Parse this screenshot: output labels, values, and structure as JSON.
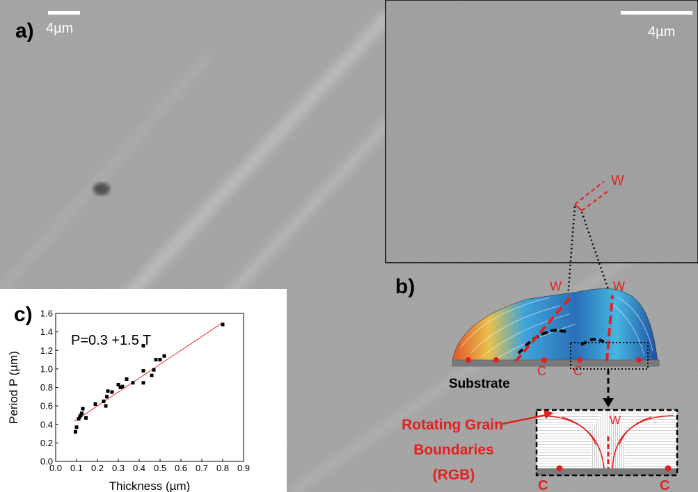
{
  "panel_a": {
    "label": "a)",
    "scalebar": "4µm"
  },
  "inset": {
    "scalebar": "4µm",
    "marker": "W"
  },
  "panel_b": {
    "label": "b)",
    "wall_labels": [
      "W",
      "W"
    ],
    "contact_labels": [
      "C",
      "C"
    ],
    "substrate_label": "Substrate",
    "rgb_label_lines": [
      "Rotating Grain",
      "Boundaries",
      "(RGB)"
    ],
    "zoom_wall": "W",
    "zoom_contacts": [
      "C",
      "C"
    ]
  },
  "panel_c": {
    "label": "c)",
    "equation": "P=0.3 +1.5 T"
  },
  "colors": {
    "annotation_red": "#e32020",
    "fit_line": "#e03030",
    "image_gray": "#9d9d9d"
  },
  "chart_data": {
    "type": "scatter",
    "title": "",
    "xlabel": "Thickness (µm)",
    "ylabel": "Period P (µm)",
    "xlim": [
      0.0,
      0.9
    ],
    "ylim": [
      0.0,
      1.6
    ],
    "xticks": [
      "0.0",
      "0.1",
      "0.2",
      "0.3",
      "0.4",
      "0.5",
      "0.6",
      "0.7",
      "0.8",
      "0.9"
    ],
    "yticks": [
      "0.0",
      "0.2",
      "0.4",
      "0.6",
      "0.8",
      "1.0",
      "1.2",
      "1.4",
      "1.6"
    ],
    "grid": false,
    "points": [
      {
        "x": 0.095,
        "y": 0.32
      },
      {
        "x": 0.1,
        "y": 0.37
      },
      {
        "x": 0.11,
        "y": 0.46
      },
      {
        "x": 0.115,
        "y": 0.48
      },
      {
        "x": 0.12,
        "y": 0.5
      },
      {
        "x": 0.125,
        "y": 0.52
      },
      {
        "x": 0.13,
        "y": 0.57
      },
      {
        "x": 0.145,
        "y": 0.47
      },
      {
        "x": 0.19,
        "y": 0.62
      },
      {
        "x": 0.23,
        "y": 0.65
      },
      {
        "x": 0.24,
        "y": 0.6
      },
      {
        "x": 0.245,
        "y": 0.7
      },
      {
        "x": 0.25,
        "y": 0.76
      },
      {
        "x": 0.27,
        "y": 0.75
      },
      {
        "x": 0.3,
        "y": 0.83
      },
      {
        "x": 0.31,
        "y": 0.8
      },
      {
        "x": 0.32,
        "y": 0.81
      },
      {
        "x": 0.34,
        "y": 0.89
      },
      {
        "x": 0.37,
        "y": 0.85
      },
      {
        "x": 0.42,
        "y": 0.85
      },
      {
        "x": 0.42,
        "y": 0.98
      },
      {
        "x": 0.42,
        "y": 1.25
      },
      {
        "x": 0.46,
        "y": 0.93
      },
      {
        "x": 0.47,
        "y": 0.99
      },
      {
        "x": 0.48,
        "y": 1.1
      },
      {
        "x": 0.5,
        "y": 1.1
      },
      {
        "x": 0.52,
        "y": 1.14
      },
      {
        "x": 0.8,
        "y": 1.48
      }
    ],
    "fit": {
      "intercept": 0.3,
      "slope": 1.5,
      "x_range": [
        0.09,
        0.8
      ]
    }
  }
}
